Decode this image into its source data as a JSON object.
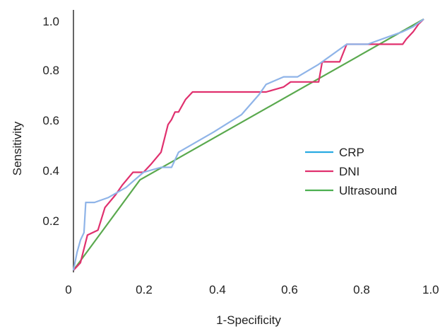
{
  "chart_data": {
    "type": "line",
    "xlabel": "1-Specificity",
    "ylabel": "Sensitivity",
    "xlim": [
      0,
      1.0
    ],
    "ylim": [
      0,
      1.0
    ],
    "xticks": [
      "0",
      "0.2",
      "0.4",
      "0.6",
      "0.8",
      "1.0"
    ],
    "yticks": [
      "0.2",
      "0.4",
      "0.6",
      "0.8",
      "1.0"
    ],
    "grid": false,
    "legend_position": "center-right",
    "series": [
      {
        "name": "CRP",
        "color": "#8fb4e8",
        "legend_color": "#29abe2",
        "x": [
          0,
          0.01,
          0.02,
          0.03,
          0.035,
          0.06,
          0.1,
          0.15,
          0.2,
          0.25,
          0.28,
          0.3,
          0.35,
          0.4,
          0.48,
          0.53,
          0.55,
          0.6,
          0.64,
          0.7,
          0.73,
          0.78,
          0.84,
          0.9,
          0.94,
          0.97,
          1.0
        ],
        "y": [
          0,
          0.07,
          0.12,
          0.15,
          0.27,
          0.27,
          0.29,
          0.33,
          0.39,
          0.41,
          0.41,
          0.47,
          0.51,
          0.55,
          0.62,
          0.7,
          0.74,
          0.77,
          0.77,
          0.82,
          0.85,
          0.9,
          0.9,
          0.93,
          0.95,
          0.97,
          1.0
        ]
      },
      {
        "name": "DNI",
        "color": "#e0306e",
        "legend_color": "#e0306e",
        "x": [
          0,
          0.02,
          0.04,
          0.07,
          0.09,
          0.12,
          0.14,
          0.17,
          0.2,
          0.22,
          0.25,
          0.27,
          0.28,
          0.29,
          0.3,
          0.32,
          0.34,
          0.45,
          0.55,
          0.6,
          0.62,
          0.7,
          0.71,
          0.76,
          0.78,
          0.94,
          0.95,
          0.97,
          0.985,
          1.0
        ],
        "y": [
          0,
          0.03,
          0.14,
          0.16,
          0.25,
          0.3,
          0.34,
          0.39,
          0.39,
          0.42,
          0.47,
          0.58,
          0.6,
          0.63,
          0.63,
          0.68,
          0.71,
          0.71,
          0.71,
          0.73,
          0.75,
          0.75,
          0.83,
          0.83,
          0.9,
          0.9,
          0.92,
          0.95,
          0.98,
          1.0
        ]
      },
      {
        "name": "Ultrasound",
        "color": "#5aa94e",
        "legend_color": "#4caf50",
        "x": [
          0,
          0.19,
          1.0
        ],
        "y": [
          0,
          0.36,
          1.0
        ]
      }
    ]
  }
}
